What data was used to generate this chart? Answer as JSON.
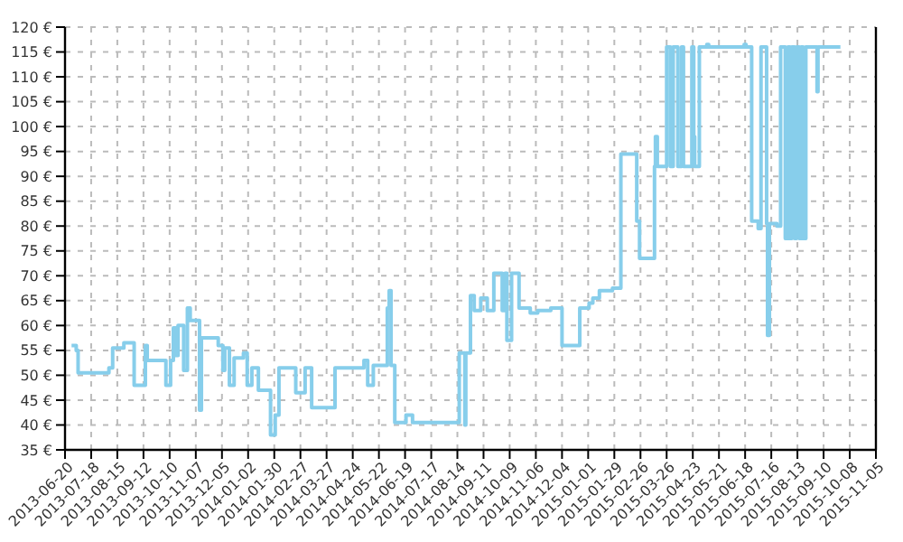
{
  "chart_data": {
    "type": "step",
    "color": "#87ceeb",
    "grid": true,
    "line_style": "solid",
    "x": [
      "2013-06-27",
      "2013-07-02",
      "2013-07-04",
      "2013-08-06",
      "2013-08-10",
      "2013-08-22",
      "2013-09-02",
      "2013-09-14",
      "2013-09-16",
      "2013-10-06",
      "2013-10-11",
      "2013-10-14",
      "2013-10-17",
      "2013-10-19",
      "2013-10-25",
      "2013-10-29",
      "2013-11-01",
      "2013-11-11",
      "2013-11-13",
      "2013-12-01",
      "2013-12-06",
      "2013-12-08",
      "2013-12-13",
      "2013-12-18",
      "2013-12-28",
      "2014-01-01",
      "2014-01-06",
      "2014-01-13",
      "2014-01-26",
      "2014-01-31",
      "2014-02-04",
      "2014-02-22",
      "2014-03-04",
      "2014-03-11",
      "2014-04-05",
      "2014-05-06",
      "2014-05-10",
      "2014-05-16",
      "2014-05-31",
      "2014-06-02",
      "2014-06-04",
      "2014-06-08",
      "2014-06-20",
      "2014-06-27",
      "2014-08-16",
      "2014-08-22",
      "2014-08-23",
      "2014-08-28",
      "2014-09-01",
      "2014-09-08",
      "2014-09-15",
      "2014-09-22",
      "2014-10-01",
      "2014-10-04",
      "2014-10-06",
      "2014-10-11",
      "2014-10-19",
      "2014-10-31",
      "2014-11-08",
      "2014-11-22",
      "2014-12-04",
      "2014-12-23",
      "2015-01-02",
      "2015-01-06",
      "2015-01-13",
      "2015-01-27",
      "2015-02-05",
      "2015-02-22",
      "2015-02-25",
      "2015-03-13",
      "2015-03-14",
      "2015-03-16",
      "2015-03-26",
      "2015-03-30",
      "2015-04-02",
      "2015-04-07",
      "2015-04-11",
      "2015-04-13",
      "2015-04-22",
      "2015-04-24",
      "2015-04-25",
      "2015-04-30",
      "2015-05-08",
      "2015-05-10",
      "2015-06-17",
      "2015-06-19",
      "2015-06-25",
      "2015-07-02",
      "2015-07-05",
      "2015-07-11",
      "2015-07-12",
      "2015-07-14",
      "2015-07-22",
      "2015-07-26",
      "2015-07-31",
      "2015-08-03",
      "2015-08-05",
      "2015-08-07",
      "2015-08-10",
      "2015-08-12",
      "2015-08-15",
      "2015-08-17",
      "2015-08-19",
      "2015-08-22",
      "2015-09-03",
      "2015-09-04",
      "2015-09-28"
    ],
    "values": [
      56,
      55,
      50.5,
      51.5,
      55.5,
      56.5,
      48,
      56,
      53,
      48,
      53,
      59.5,
      54,
      60,
      51,
      63.5,
      61,
      43,
      57.5,
      56,
      51,
      55.5,
      48,
      53.5,
      54.5,
      48,
      51.5,
      47,
      38,
      42,
      51.5,
      46.5,
      51.5,
      43.5,
      51.5,
      53,
      48,
      52,
      63.5,
      67,
      52,
      40.5,
      42,
      40.5,
      54.5,
      40,
      54.5,
      66,
      63,
      65.5,
      63,
      70.5,
      63,
      70.5,
      57,
      70.5,
      63.5,
      62.5,
      63,
      63.5,
      56,
      63.5,
      64.5,
      65.5,
      67,
      67.5,
      94.5,
      81,
      73.5,
      92,
      98,
      92,
      116,
      92,
      116,
      92,
      116,
      92,
      116,
      98,
      92,
      116,
      116.5,
      116,
      116.5,
      116,
      81,
      79.5,
      116,
      80.5,
      58,
      80.5,
      80,
      116,
      77.5,
      116,
      77.5,
      116,
      77.5,
      116,
      77.5,
      116,
      77.5,
      116,
      107,
      116,
      116
    ],
    "xlim": [
      "2013-06-20",
      "2015-11-05"
    ],
    "xticks": [
      "2013-06-20",
      "2013-07-18",
      "2013-08-15",
      "2013-09-12",
      "2013-10-10",
      "2013-11-07",
      "2013-12-05",
      "2014-01-02",
      "2014-01-30",
      "2014-02-27",
      "2014-03-27",
      "2014-04-24",
      "2014-05-22",
      "2014-06-19",
      "2014-07-17",
      "2014-08-14",
      "2014-09-11",
      "2014-10-09",
      "2014-11-06",
      "2014-12-04",
      "2015-01-01",
      "2015-01-29",
      "2015-02-26",
      "2015-03-26",
      "2015-04-23",
      "2015-05-21",
      "2015-06-18",
      "2015-07-16",
      "2015-08-13",
      "2015-09-10",
      "2015-10-08",
      "2015-11-05"
    ],
    "ylim": [
      35,
      120
    ],
    "yticks": [
      {
        "value": 35,
        "label": "35 €"
      },
      {
        "value": 40,
        "label": "40 €"
      },
      {
        "value": 45,
        "label": "45 €"
      },
      {
        "value": 50,
        "label": "50 €"
      },
      {
        "value": 55,
        "label": "55 €"
      },
      {
        "value": 60,
        "label": "60 €"
      },
      {
        "value": 65,
        "label": "65 €"
      },
      {
        "value": 70,
        "label": "70 €"
      },
      {
        "value": 75,
        "label": "75 €"
      },
      {
        "value": 80,
        "label": "80 €"
      },
      {
        "value": 85,
        "label": "85 €"
      },
      {
        "value": 90,
        "label": "90 €"
      },
      {
        "value": 95,
        "label": "95 €"
      },
      {
        "value": 100,
        "label": "100 €"
      },
      {
        "value": 105,
        "label": "105 €"
      },
      {
        "value": 110,
        "label": "110 €"
      },
      {
        "value": 115,
        "label": "115 €"
      },
      {
        "value": 120,
        "label": "120 €"
      }
    ]
  }
}
